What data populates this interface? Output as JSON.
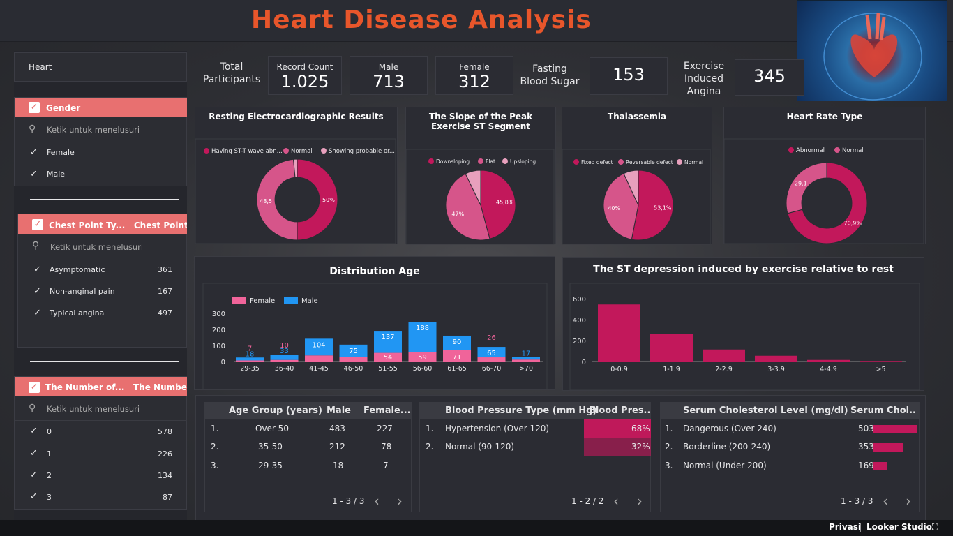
{
  "header": {
    "title": "Heart Disease Analysis"
  },
  "kpis": {
    "total_label": "Total\nParticipants",
    "record_label": "Record Count",
    "record_value": "1.025",
    "male_label": "Male",
    "male_value": "713",
    "female_label": "Female",
    "female_value": "312",
    "fbs_label": "Fasting\nBlood Sugar",
    "fbs_value": "153",
    "angina_label": "Exercise\nInduced\nAngina",
    "angina_value": "345"
  },
  "filters": {
    "dropdown": {
      "value": "Heart",
      "caret": "-"
    },
    "gender": {
      "title": "Gender",
      "search_placeholder": "Ketik untuk menelusuri",
      "items": [
        {
          "label": "Female"
        },
        {
          "label": "Male"
        }
      ]
    },
    "chest": {
      "title": "Chest Point Ty...   Chest Point...",
      "search_placeholder": "Ketik untuk menelusuri",
      "items": [
        {
          "label": "Asymptomatic",
          "count": "361"
        },
        {
          "label": "Non-anginal pain",
          "count": "167"
        },
        {
          "label": "Typical angina",
          "count": "497"
        }
      ]
    },
    "vessels": {
      "title": "The Number of...   The Numbe...",
      "search_placeholder": "Ketik untuk menelusuri",
      "items": [
        {
          "label": "0",
          "count": "578"
        },
        {
          "label": "1",
          "count": "226"
        },
        {
          "label": "2",
          "count": "134"
        },
        {
          "label": "3",
          "count": "87"
        }
      ]
    }
  },
  "colors": {
    "accent": "#c2185b",
    "mid": "#d6558a",
    "light": "#e8a0bd",
    "male": "#2196f3",
    "female": "#f0649a",
    "title": "#e8562b"
  },
  "chart_data": [
    {
      "type": "pie",
      "id": "resting_ecg",
      "title": "Resting Electrocardiographic Results",
      "legend": [
        "Having ST-T wave abn...",
        "Normal",
        "Showing probable or..."
      ],
      "values": [
        50,
        48.5,
        1.5
      ],
      "labels": [
        "50%",
        "48,5",
        ""
      ],
      "donut": true
    },
    {
      "type": "pie",
      "id": "slope",
      "title": "The Slope of the Peak Exercise ST Segment",
      "legend": [
        "Downsloping",
        "Flat",
        "Upsloping"
      ],
      "values": [
        45.8,
        47,
        7.2
      ],
      "labels": [
        "45,8%",
        "47%",
        ""
      ],
      "donut": false
    },
    {
      "type": "pie",
      "id": "thal",
      "title": "Thalassemia",
      "legend": [
        "Fixed defect",
        "Reversable defect",
        "Normal"
      ],
      "values": [
        53.1,
        40,
        6.9
      ],
      "labels": [
        "53,1%",
        "40%",
        ""
      ],
      "donut": false
    },
    {
      "type": "pie",
      "id": "hrtype",
      "title": "Heart Rate Type",
      "legend": [
        "Abnormal",
        "Normal"
      ],
      "values": [
        70.9,
        29.1
      ],
      "labels": [
        "70,9%",
        "29,1"
      ],
      "donut": true
    },
    {
      "type": "bar",
      "id": "age",
      "title": "Distribution Age",
      "stacked": true,
      "categories": [
        "29-35",
        "36-40",
        "41-45",
        "46-50",
        "51-55",
        "56-60",
        "61-65",
        "66-70",
        ">70"
      ],
      "series": [
        {
          "name": "Female",
          "values": [
            7,
            10,
            38,
            30,
            54,
            59,
            71,
            26,
            12
          ]
        },
        {
          "name": "Male",
          "values": [
            18,
            33,
            104,
            75,
            137,
            188,
            90,
            65,
            17
          ]
        }
      ],
      "label_female": [
        "7",
        "10",
        "",
        "",
        "54",
        "59",
        "71",
        "26",
        ""
      ],
      "label_male": [
        "18",
        "33",
        "104",
        "75",
        "137",
        "188",
        "90",
        "65",
        "17"
      ],
      "yticks": [
        "300",
        "200",
        "100",
        "0"
      ],
      "ylim": [
        0,
        300
      ]
    },
    {
      "type": "bar",
      "id": "st",
      "title": "The ST depression induced by exercise relative to rest",
      "categories": [
        "0-0.9",
        "1-1.9",
        "2-2.9",
        "3-3.9",
        "4-4.9",
        ">5"
      ],
      "values": [
        545,
        260,
        115,
        55,
        15,
        5
      ],
      "yticks": [
        "600",
        "400",
        "200",
        "0"
      ],
      "ylim": [
        0,
        600
      ]
    }
  ],
  "tables": {
    "age": {
      "headers": [
        "Age Group (years)",
        "Male",
        "Female..."
      ],
      "rows": [
        {
          "n": "1.",
          "group": "Over 50",
          "male": "483",
          "female": "227"
        },
        {
          "n": "2.",
          "group": "35-50",
          "male": "212",
          "female": "78"
        },
        {
          "n": "3.",
          "group": "29-35",
          "male": "18",
          "female": "7"
        }
      ],
      "pager": "1 - 3 / 3"
    },
    "bp": {
      "headers": [
        "Blood Pressure Type (mm Hg)",
        "Blood Pres..."
      ],
      "rows": [
        {
          "n": "1.",
          "type": "Hypertension (Over 120)",
          "pct": "68%",
          "frac": 0.68
        },
        {
          "n": "2.",
          "type": "Normal (90-120)",
          "pct": "32%",
          "frac": 0.32
        }
      ],
      "pager": "1 - 2 / 2"
    },
    "chol": {
      "headers": [
        "Serum Cholesterol Level (mg/dl)",
        "Serum Chol..."
      ],
      "rows": [
        {
          "n": "1.",
          "level": "Dangerous (Over 240)",
          "value": "503",
          "num": 503
        },
        {
          "n": "2.",
          "level": "Borderline (200-240)",
          "value": "353",
          "num": 353
        },
        {
          "n": "3.",
          "level": "Normal (Under 200)",
          "value": "169",
          "num": 169
        }
      ],
      "pager": "1 - 3 / 3"
    },
    "nav": {
      "prev": "‹",
      "next": "›"
    }
  },
  "footer": {
    "privacy": "Privasi",
    "sep": "|",
    "brand": "Looker Studio",
    "fullscreen": "⛶"
  }
}
